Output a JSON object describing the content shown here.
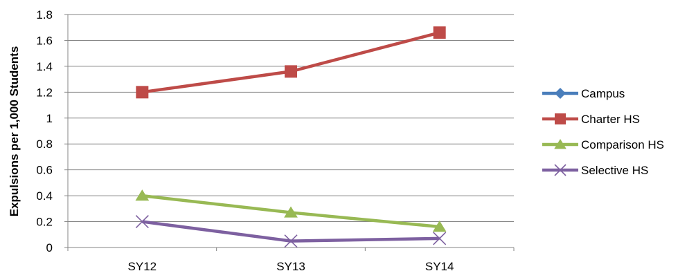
{
  "chart_data": {
    "type": "line",
    "title": "",
    "xlabel": "",
    "ylabel": "Expulsions per 1,000 Students",
    "categories": [
      "SY12",
      "SY13",
      "SY14"
    ],
    "ylim": [
      0,
      1.8
    ],
    "yticks": [
      "0",
      "0.2",
      "0.4",
      "0.6",
      "0.8",
      "1",
      "1.2",
      "1.4",
      "1.6",
      "1.8"
    ],
    "grid": true,
    "legend_position": "right",
    "series": [
      {
        "name": "Campus",
        "values": [
          null,
          null,
          null
        ],
        "color": "#4A7EBB",
        "marker": "diamond"
      },
      {
        "name": "Charter HS",
        "values": [
          1.2,
          1.36,
          1.66
        ],
        "color": "#BE4B48",
        "marker": "square"
      },
      {
        "name": "Comparison HS",
        "values": [
          0.4,
          0.27,
          0.16
        ],
        "color": "#98B954",
        "marker": "triangle"
      },
      {
        "name": "Selective HS",
        "values": [
          0.2,
          0.05,
          0.07
        ],
        "color": "#7D60A0",
        "marker": "x"
      }
    ]
  }
}
